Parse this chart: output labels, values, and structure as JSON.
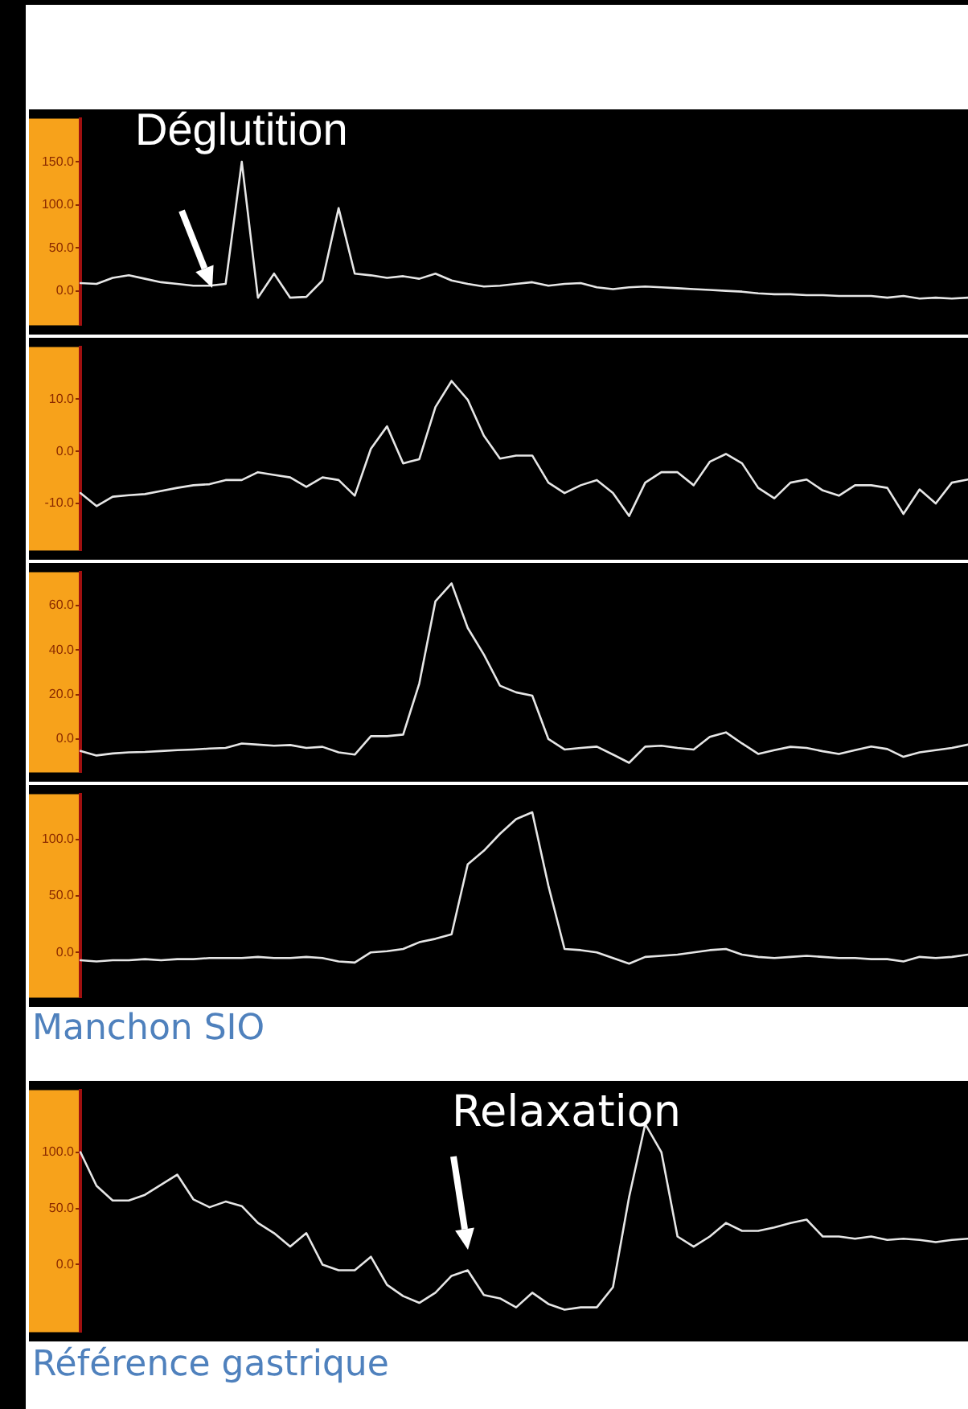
{
  "chart_data": [
    {
      "type": "line",
      "categories": [
        null,
        null,
        null,
        null,
        null,
        null,
        null,
        null,
        null,
        null,
        null,
        null,
        null,
        null,
        null,
        null,
        null,
        null,
        null,
        null,
        null,
        null,
        null,
        null,
        null,
        null,
        null,
        null,
        null,
        null,
        null,
        null,
        null,
        null,
        null,
        null,
        null,
        null,
        null,
        null,
        null,
        null,
        null,
        null,
        null,
        null,
        null,
        null,
        null,
        null,
        null,
        null,
        null,
        null,
        null,
        null
      ],
      "color": "#e6e6e6",
      "values": [
        9,
        8,
        15,
        18,
        14,
        10,
        8,
        6,
        6,
        8,
        150,
        -8,
        20,
        -8,
        -7,
        12,
        96,
        20,
        18,
        15,
        17,
        14,
        20,
        12,
        8,
        5,
        6,
        8,
        10,
        6,
        8,
        9,
        4,
        2,
        4,
        5,
        4,
        3,
        2,
        1,
        0,
        -1,
        -3,
        -4,
        -4,
        -5,
        -5,
        -6,
        -6,
        -6,
        -8,
        -6,
        -9,
        -8,
        -9,
        -8
      ],
      "ylim": [
        -40,
        200
      ],
      "yticks": [
        {
          "value": 0,
          "label": "0.0"
        },
        {
          "value": 50,
          "label": "50.0"
        },
        {
          "value": 100,
          "label": "100.0"
        },
        {
          "value": 150,
          "label": "150.0"
        }
      ],
      "tick_labels": "y",
      "annotations": [
        "Déglutition"
      ]
    },
    {
      "type": "line",
      "categories": [
        null,
        null,
        null,
        null,
        null,
        null,
        null,
        null,
        null,
        null,
        null,
        null,
        null,
        null,
        null,
        null,
        null,
        null,
        null,
        null,
        null,
        null,
        null,
        null,
        null,
        null,
        null,
        null,
        null,
        null,
        null,
        null,
        null,
        null,
        null,
        null,
        null,
        null,
        null,
        null,
        null,
        null,
        null,
        null,
        null,
        null,
        null,
        null,
        null,
        null,
        null,
        null,
        null,
        null,
        null,
        null
      ],
      "color": "#e6e6e6",
      "values": [
        -8,
        -10.5,
        -8.7,
        -8.4,
        -8.2,
        -7.6,
        -7,
        -6.5,
        -6.3,
        -5.5,
        -5.5,
        -4,
        -4.5,
        -5,
        -6.8,
        -5,
        -5.5,
        -8.5,
        0.5,
        4.8,
        -2.3,
        -1.5,
        8.5,
        13.5,
        9.9,
        3,
        -1.4,
        -0.8,
        -0.8,
        -6,
        -8,
        -6.5,
        -5.5,
        -8,
        -12.4,
        -6,
        -4,
        -4,
        -6.5,
        -2,
        -0.5,
        -2.3,
        -7,
        -9,
        -6,
        -5.4,
        -7.5,
        -8.5,
        -6.5,
        -6.5,
        -7,
        -12,
        -7.3,
        -10,
        -6,
        -5.4
      ],
      "ylim": [
        -19,
        20
      ],
      "yticks": [
        {
          "value": -10,
          "label": "-10.0"
        },
        {
          "value": 0,
          "label": "0.0"
        },
        {
          "value": 10,
          "label": "10.0"
        }
      ],
      "tick_labels": "y"
    },
    {
      "type": "line",
      "categories": [
        null,
        null,
        null,
        null,
        null,
        null,
        null,
        null,
        null,
        null,
        null,
        null,
        null,
        null,
        null,
        null,
        null,
        null,
        null,
        null,
        null,
        null,
        null,
        null,
        null,
        null,
        null,
        null,
        null,
        null,
        null,
        null,
        null,
        null,
        null,
        null,
        null,
        null,
        null,
        null,
        null,
        null,
        null,
        null,
        null,
        null,
        null,
        null,
        null,
        null,
        null,
        null,
        null,
        null,
        null,
        null
      ],
      "color": "#e6e6e6",
      "values": [
        -5.4,
        -7.4,
        -6.5,
        -6,
        -5.8,
        -5.4,
        -5,
        -4.7,
        -4.3,
        -4,
        -2,
        -2.5,
        -3,
        -2.7,
        -4,
        -3.5,
        -6,
        -7,
        1.3,
        1.3,
        2,
        25,
        62,
        70,
        50,
        38,
        24,
        21,
        19.5,
        0,
        -4.7,
        -4,
        -3.4,
        -7,
        -10.7,
        -3.4,
        -3,
        -4,
        -4.7,
        1,
        3,
        -2,
        -6.7,
        -5,
        -3.5,
        -4,
        -5.5,
        -6.7,
        -5,
        -3.4,
        -4.5,
        -8,
        -6,
        -5,
        -4,
        -2.5
      ],
      "ylim": [
        -15,
        75
      ],
      "yticks": [
        {
          "value": 0,
          "label": "0.0"
        },
        {
          "value": 20,
          "label": "20.0"
        },
        {
          "value": 40,
          "label": "40.0"
        },
        {
          "value": 60,
          "label": "60.0"
        }
      ],
      "tick_labels": "y"
    },
    {
      "type": "line",
      "categories": [
        null,
        null,
        null,
        null,
        null,
        null,
        null,
        null,
        null,
        null,
        null,
        null,
        null,
        null,
        null,
        null,
        null,
        null,
        null,
        null,
        null,
        null,
        null,
        null,
        null,
        null,
        null,
        null,
        null,
        null,
        null,
        null,
        null,
        null,
        null,
        null,
        null,
        null,
        null,
        null,
        null,
        null,
        null,
        null,
        null,
        null,
        null,
        null,
        null,
        null,
        null,
        null,
        null,
        null,
        null,
        null
      ],
      "color": "#e6e6e6",
      "values": [
        -7,
        -8,
        -7,
        -7,
        -6,
        -7,
        -6,
        -6,
        -5,
        -5,
        -5,
        -4,
        -5,
        -5,
        -4,
        -5,
        -8,
        -9,
        0,
        1,
        3,
        9,
        12,
        16,
        78,
        90,
        105,
        118,
        124,
        59,
        3,
        2,
        0,
        -5,
        -10,
        -4,
        -3,
        -2,
        0,
        2,
        3,
        -2,
        -4,
        -5,
        -4,
        -3,
        -4,
        -5,
        -5,
        -6,
        -6,
        -8,
        -4,
        -5,
        -4,
        -2
      ],
      "ylim": [
        -40,
        140
      ],
      "yticks": [
        {
          "value": 0,
          "label": "0.0"
        },
        {
          "value": 50,
          "label": "50.0"
        },
        {
          "value": 100,
          "label": "100.0"
        }
      ],
      "tick_labels": "y",
      "annotations": [
        "Manchon SIO"
      ]
    },
    {
      "type": "line",
      "categories": [
        null,
        null,
        null,
        null,
        null,
        null,
        null,
        null,
        null,
        null,
        null,
        null,
        null,
        null,
        null,
        null,
        null,
        null,
        null,
        null,
        null,
        null,
        null,
        null,
        null,
        null,
        null,
        null,
        null,
        null,
        null,
        null,
        null,
        null,
        null,
        null,
        null,
        null,
        null,
        null,
        null,
        null,
        null,
        null,
        null,
        null,
        null,
        null,
        null,
        null,
        null,
        null,
        null,
        null,
        null,
        null
      ],
      "color": "#e6e6e6",
      "values": [
        100,
        70,
        57,
        57,
        62,
        71,
        80,
        58,
        51,
        56,
        52,
        37,
        28,
        16,
        28,
        0,
        -5,
        -5,
        7,
        -18,
        -28,
        -34,
        -25,
        -10,
        -5,
        -27,
        -30,
        -38,
        -25,
        -35,
        -40,
        -38,
        -38,
        -20,
        60,
        125,
        100,
        25,
        16,
        25,
        37,
        30,
        30,
        33,
        37,
        40,
        25,
        25,
        23,
        25,
        22,
        23,
        22,
        20,
        22,
        23
      ],
      "ylim": [
        -60,
        155
      ],
      "yticks": [
        {
          "value": 0,
          "label": "0.0"
        },
        {
          "value": 50,
          "label": "50.0"
        },
        {
          "value": 100,
          "label": "100.0"
        }
      ],
      "tick_labels": "y",
      "annotations": [
        "Relaxation",
        "Référence gastrique"
      ]
    }
  ]
}
